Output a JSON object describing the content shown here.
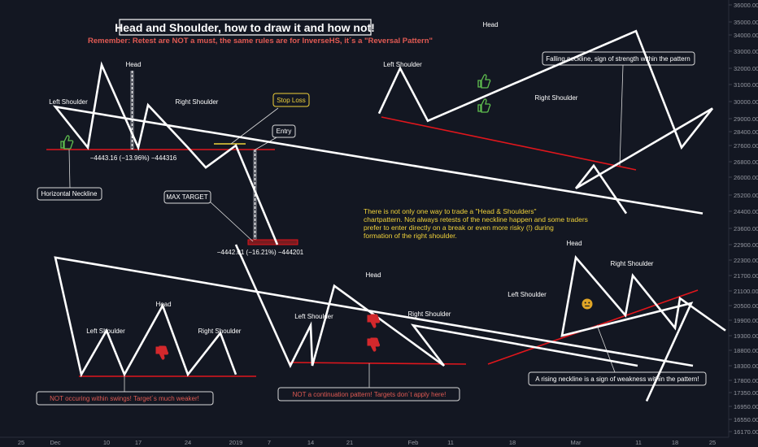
{
  "chart_data": {
    "type": "line",
    "title": "Head and Shoulder, how to draw it and how not!",
    "subtitle": "Remember: Retest are NOT a must, the same rules are for InverseHS, it´s a \"Reversal Pattern\"",
    "x_ticks": [
      "25",
      "Dec",
      "10",
      "17",
      "24",
      "2019",
      "7",
      "14",
      "21",
      "Feb",
      "11",
      "18",
      "Mar",
      "11",
      "18",
      "25"
    ],
    "y_ticks": [
      36000,
      35000,
      34000,
      33000,
      32000,
      31000,
      30000,
      29000,
      28400,
      27600,
      26800,
      26000,
      25200,
      24400,
      23600,
      22900,
      22300,
      21700,
      21100,
      20500,
      19900,
      19300,
      18800,
      18300,
      17800,
      17350,
      16950,
      16550,
      16170
    ],
    "series": [
      {
        "values": [
          {
            "x": "25",
            "y": 24300
          },
          {
            "x": "Dec",
            "y": 29700
          },
          {
            "x": "Dec",
            "y": 27500
          },
          {
            "x": "10",
            "y": 32200
          },
          {
            "x": "17",
            "y": 27500
          },
          {
            "x": "17",
            "y": 29800
          },
          {
            "x": "24",
            "y": 27500
          },
          {
            "x": "24",
            "y": 26500
          },
          {
            "x": "2019",
            "y": 27600
          },
          {
            "x": "7",
            "y": 22900
          }
        ]
      },
      {
        "values": [
          {
            "x": "Feb",
            "y": 29300
          },
          {
            "x": "Feb",
            "y": 32000
          },
          {
            "x": "Feb",
            "y": 28900
          },
          {
            "x": "11",
            "y": 34300
          },
          {
            "x": "18",
            "y": 27500
          },
          {
            "x": "18",
            "y": 29600
          },
          {
            "x": "Mar",
            "y": 25500
          },
          {
            "x": "Mar",
            "y": 26600
          },
          {
            "x": "11",
            "y": 24300
          }
        ]
      },
      {
        "values": [
          {
            "x": "25",
            "y": 18300
          },
          {
            "x": "Dec",
            "y": 22400
          },
          {
            "x": "Dec",
            "y": 18000
          },
          {
            "x": "10",
            "y": 19500
          },
          {
            "x": "17",
            "y": 18000
          },
          {
            "x": "17",
            "y": 20500
          },
          {
            "x": "24",
            "y": 18000
          },
          {
            "x": "24",
            "y": 19400
          },
          {
            "x": "2019",
            "y": 18000
          }
        ]
      },
      {
        "values": [
          {
            "x": "2019",
            "y": 22900
          },
          {
            "x": "14",
            "y": 18300
          },
          {
            "x": "14",
            "y": 19700
          },
          {
            "x": "21",
            "y": 18300
          },
          {
            "x": "21",
            "y": 21300
          },
          {
            "x": "Feb",
            "y": 18300
          },
          {
            "x": "Feb",
            "y": 19700
          },
          {
            "x": "11",
            "y": 18300
          }
        ]
      },
      {
        "values": [
          {
            "x": "18",
            "y": 17100
          },
          {
            "x": "18",
            "y": 20600
          },
          {
            "x": "Mar",
            "y": 19300
          },
          {
            "x": "Mar",
            "y": 22400
          },
          {
            "x": "11",
            "y": 20100
          },
          {
            "x": "11",
            "y": 21700
          },
          {
            "x": "18",
            "y": 19600
          },
          {
            "x": "18",
            "y": 20800
          },
          {
            "x": "25",
            "y": 19500
          }
        ]
      }
    ],
    "labels": {
      "left_shoulder": "Left Shoulder",
      "head": "Head",
      "right_shoulder": "Right Shoulder",
      "horizontal_neckline": "Horizontal Neckline",
      "stop_loss": "Stop Loss",
      "entry": "Entry",
      "max_target": "MAX TARGET",
      "measure_1": "−4443.16 (−13.96%) −444316",
      "measure_2": "−4442.01 (−16.21%) −444201",
      "falling_neckline": "Falling neckline, sign of strength within the pattern",
      "rising_neckline": "A rising neckline is a sign of weakness within the pattern!",
      "not_in_swings": "NOT occuring within swings! Target´s much weaker!",
      "not_continuation": "NOT a continuation pattern! Targets don´t apply here!",
      "note_lines": [
        "There is not only one way to trade a \"Head & Shoulders\"",
        "chartpattern. Not always retests of the neckline happen and some traders",
        "prefer to enter directly on a break or even more risky (!) during",
        "formation of the right shoulder."
      ]
    },
    "colors": {
      "background": "#131722",
      "price_line": "#ffffff",
      "neckline": "#e0161c",
      "subtitle": "#e05a53",
      "note": "#f0d23a",
      "stop_loss_line": "#f0d23a",
      "thumb_up": "#5fbf4f",
      "thumb_down": "#d3282c",
      "neutral_face": "#e0a526"
    },
    "grid": false,
    "legend": "none"
  }
}
